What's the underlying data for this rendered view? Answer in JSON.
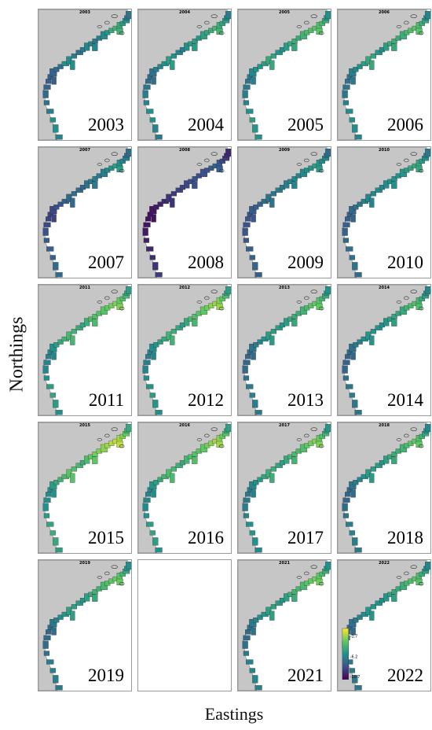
{
  "axes": {
    "ylabel": "Northings",
    "xlabel": "Eastings"
  },
  "colors": {
    "land": "#c6c6c6",
    "sea": "#ffffff",
    "outline": "#333333",
    "scale": [
      "#440154",
      "#3b528b",
      "#21918c",
      "#5ec962",
      "#fde725"
    ]
  },
  "panels": [
    {
      "title": "2003",
      "year_label": "2003",
      "values": [
        0.45,
        0.5,
        0.5,
        0.42,
        0.38,
        0.35,
        0.32,
        0.3,
        0.3,
        0.32,
        0.34,
        0.36,
        0.5,
        0.48,
        0.42,
        0.36,
        0.4,
        0.45,
        0.45,
        0.4,
        0.42,
        0.48,
        0.52,
        0.6,
        0.64,
        0.6,
        0.55,
        0.5,
        0.42,
        0.38
      ]
    },
    {
      "title": "2004",
      "year_label": "2004",
      "values": [
        0.4,
        0.45,
        0.5,
        0.5,
        0.45,
        0.42,
        0.38,
        0.35,
        0.36,
        0.38,
        0.42,
        0.46,
        0.5,
        0.55,
        0.5,
        0.45,
        0.42,
        0.5,
        0.55,
        0.55,
        0.52,
        0.56,
        0.58,
        0.62,
        0.65,
        0.62,
        0.58,
        0.55,
        0.48,
        0.42
      ]
    },
    {
      "title": "2005",
      "year_label": "2005",
      "values": [
        0.5,
        0.52,
        0.55,
        0.5,
        0.45,
        0.42,
        0.4,
        0.4,
        0.42,
        0.46,
        0.5,
        0.52,
        0.55,
        0.6,
        0.58,
        0.52,
        0.5,
        0.55,
        0.6,
        0.62,
        0.6,
        0.64,
        0.68,
        0.7,
        0.72,
        0.7,
        0.66,
        0.6,
        0.55,
        0.5
      ]
    },
    {
      "title": "2006",
      "year_label": "2006",
      "values": [
        0.45,
        0.48,
        0.5,
        0.48,
        0.44,
        0.4,
        0.38,
        0.38,
        0.4,
        0.42,
        0.46,
        0.5,
        0.55,
        0.6,
        0.58,
        0.52,
        0.5,
        0.55,
        0.6,
        0.62,
        0.6,
        0.62,
        0.66,
        0.7,
        0.72,
        0.68,
        0.62,
        0.58,
        0.5,
        0.45
      ]
    },
    {
      "title": "2007",
      "year_label": "2007",
      "values": [
        0.35,
        0.35,
        0.32,
        0.3,
        0.28,
        0.25,
        0.22,
        0.2,
        0.2,
        0.22,
        0.24,
        0.26,
        0.3,
        0.34,
        0.36,
        0.35,
        0.32,
        0.36,
        0.4,
        0.42,
        0.4,
        0.42,
        0.46,
        0.5,
        0.55,
        0.5,
        0.45,
        0.42,
        0.38,
        0.35
      ]
    },
    {
      "title": "2008",
      "year_label": "2008",
      "values": [
        0.18,
        0.16,
        0.14,
        0.12,
        0.1,
        0.08,
        0.06,
        0.05,
        0.05,
        0.06,
        0.08,
        0.1,
        0.12,
        0.16,
        0.18,
        0.2,
        0.2,
        0.22,
        0.24,
        0.25,
        0.24,
        0.25,
        0.26,
        0.28,
        0.3,
        0.26,
        0.22,
        0.18,
        0.15,
        0.12
      ]
    },
    {
      "title": "2009",
      "year_label": "2009",
      "values": [
        0.3,
        0.32,
        0.32,
        0.3,
        0.28,
        0.26,
        0.25,
        0.25,
        0.26,
        0.28,
        0.3,
        0.32,
        0.35,
        0.38,
        0.4,
        0.42,
        0.4,
        0.42,
        0.45,
        0.46,
        0.45,
        0.46,
        0.5,
        0.52,
        0.55,
        0.52,
        0.48,
        0.45,
        0.4,
        0.35
      ]
    },
    {
      "title": "2010",
      "year_label": "2010",
      "values": [
        0.35,
        0.38,
        0.38,
        0.36,
        0.34,
        0.32,
        0.3,
        0.3,
        0.32,
        0.34,
        0.36,
        0.38,
        0.42,
        0.45,
        0.46,
        0.48,
        0.46,
        0.48,
        0.5,
        0.52,
        0.5,
        0.52,
        0.55,
        0.58,
        0.6,
        0.58,
        0.55,
        0.5,
        0.45,
        0.4
      ]
    },
    {
      "title": "2011",
      "year_label": "2011",
      "values": [
        0.5,
        0.55,
        0.58,
        0.55,
        0.5,
        0.46,
        0.44,
        0.44,
        0.46,
        0.5,
        0.55,
        0.6,
        0.64,
        0.66,
        0.64,
        0.6,
        0.58,
        0.62,
        0.68,
        0.7,
        0.7,
        0.72,
        0.75,
        0.78,
        0.8,
        0.76,
        0.7,
        0.66,
        0.6,
        0.55
      ]
    },
    {
      "title": "2012",
      "year_label": "2012",
      "values": [
        0.48,
        0.52,
        0.55,
        0.52,
        0.48,
        0.44,
        0.42,
        0.42,
        0.44,
        0.48,
        0.52,
        0.56,
        0.6,
        0.64,
        0.62,
        0.58,
        0.55,
        0.6,
        0.66,
        0.7,
        0.72,
        0.74,
        0.78,
        0.82,
        0.84,
        0.8,
        0.74,
        0.68,
        0.6,
        0.55
      ]
    },
    {
      "title": "2013",
      "year_label": "2013",
      "values": [
        0.4,
        0.42,
        0.44,
        0.42,
        0.38,
        0.35,
        0.33,
        0.33,
        0.35,
        0.38,
        0.42,
        0.46,
        0.5,
        0.54,
        0.55,
        0.55,
        0.52,
        0.55,
        0.6,
        0.62,
        0.62,
        0.64,
        0.68,
        0.72,
        0.75,
        0.72,
        0.66,
        0.6,
        0.55,
        0.5
      ]
    },
    {
      "title": "2014",
      "year_label": "2014",
      "values": [
        0.38,
        0.4,
        0.42,
        0.4,
        0.36,
        0.33,
        0.32,
        0.32,
        0.34,
        0.36,
        0.4,
        0.44,
        0.48,
        0.52,
        0.52,
        0.5,
        0.48,
        0.52,
        0.56,
        0.58,
        0.58,
        0.6,
        0.64,
        0.68,
        0.7,
        0.66,
        0.6,
        0.55,
        0.5,
        0.45
      ]
    },
    {
      "title": "2015",
      "year_label": "2015",
      "values": [
        0.55,
        0.6,
        0.62,
        0.58,
        0.54,
        0.5,
        0.48,
        0.48,
        0.5,
        0.55,
        0.6,
        0.64,
        0.68,
        0.72,
        0.7,
        0.66,
        0.62,
        0.68,
        0.74,
        0.78,
        0.8,
        0.82,
        0.85,
        0.88,
        0.9,
        0.86,
        0.8,
        0.74,
        0.66,
        0.6
      ]
    },
    {
      "title": "2016",
      "year_label": "2016",
      "values": [
        0.5,
        0.55,
        0.58,
        0.55,
        0.5,
        0.47,
        0.45,
        0.45,
        0.48,
        0.52,
        0.56,
        0.6,
        0.64,
        0.68,
        0.66,
        0.62,
        0.6,
        0.65,
        0.7,
        0.72,
        0.72,
        0.74,
        0.78,
        0.82,
        0.85,
        0.82,
        0.76,
        0.7,
        0.62,
        0.56
      ]
    },
    {
      "title": "2017",
      "year_label": "2017",
      "values": [
        0.46,
        0.5,
        0.52,
        0.5,
        0.46,
        0.42,
        0.4,
        0.4,
        0.42,
        0.46,
        0.5,
        0.54,
        0.58,
        0.62,
        0.62,
        0.58,
        0.56,
        0.6,
        0.65,
        0.68,
        0.68,
        0.7,
        0.74,
        0.78,
        0.8,
        0.76,
        0.7,
        0.64,
        0.58,
        0.52
      ]
    },
    {
      "title": "2018",
      "year_label": "2018",
      "values": [
        0.4,
        0.42,
        0.44,
        0.42,
        0.38,
        0.35,
        0.33,
        0.33,
        0.35,
        0.38,
        0.42,
        0.46,
        0.5,
        0.54,
        0.55,
        0.54,
        0.52,
        0.56,
        0.6,
        0.62,
        0.62,
        0.64,
        0.68,
        0.72,
        0.74,
        0.7,
        0.64,
        0.58,
        0.52,
        0.46
      ]
    },
    {
      "title": "2019",
      "year_label": "2019",
      "values": [
        0.4,
        0.42,
        0.44,
        0.42,
        0.38,
        0.36,
        0.34,
        0.34,
        0.36,
        0.4,
        0.44,
        0.48,
        0.52,
        0.56,
        0.56,
        0.54,
        0.52,
        0.56,
        0.6,
        0.64,
        0.64,
        0.66,
        0.7,
        0.74,
        0.76,
        0.72,
        0.66,
        0.6,
        0.54,
        0.48
      ]
    },
    {
      "title": "",
      "year_label": "",
      "empty": true,
      "values": []
    },
    {
      "title": "2021",
      "year_label": "2021",
      "values": [
        0.42,
        0.45,
        0.46,
        0.44,
        0.4,
        0.37,
        0.35,
        0.35,
        0.37,
        0.4,
        0.44,
        0.48,
        0.52,
        0.56,
        0.56,
        0.54,
        0.52,
        0.56,
        0.62,
        0.65,
        0.66,
        0.68,
        0.72,
        0.76,
        0.78,
        0.74,
        0.68,
        0.62,
        0.56,
        0.5
      ]
    },
    {
      "title": "2022",
      "year_label": "2022",
      "values": [
        0.38,
        0.4,
        0.42,
        0.4,
        0.36,
        0.34,
        0.32,
        0.32,
        0.34,
        0.37,
        0.4,
        0.44,
        0.48,
        0.52,
        0.52,
        0.5,
        0.48,
        0.52,
        0.56,
        0.6,
        0.6,
        0.62,
        0.66,
        0.7,
        0.72,
        0.68,
        0.62,
        0.56,
        0.5,
        0.45
      ],
      "legend": true
    }
  ],
  "legend": {
    "ticks": [
      "-1.7",
      "-6.2",
      "-10.7"
    ]
  }
}
